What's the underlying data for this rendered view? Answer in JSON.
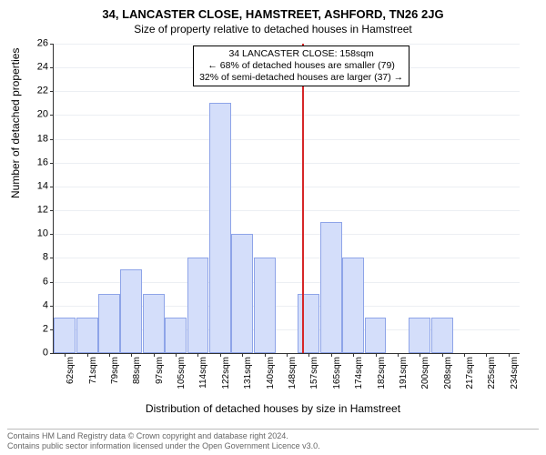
{
  "header": {
    "title": "34, LANCASTER CLOSE, HAMSTREET, ASHFORD, TN26 2JG",
    "subtitle": "Size of property relative to detached houses in Hamstreet"
  },
  "axis": {
    "ylabel": "Number of detached properties",
    "xlabel": "Distribution of detached houses by size in Hamstreet",
    "ylim_max": 26,
    "ytick_step": 2,
    "grid_color": "#eceff3",
    "axis_color": "#333333",
    "label_fontsize": 12,
    "tick_fontsize": 11
  },
  "chart": {
    "type": "histogram",
    "bar_fill": "#d4defa",
    "bar_border": "#8ea4e8",
    "background_color": "#ffffff",
    "categories": [
      "62sqm",
      "71sqm",
      "79sqm",
      "88sqm",
      "97sqm",
      "105sqm",
      "114sqm",
      "122sqm",
      "131sqm",
      "140sqm",
      "148sqm",
      "157sqm",
      "165sqm",
      "174sqm",
      "182sqm",
      "191sqm",
      "200sqm",
      "208sqm",
      "217sqm",
      "225sqm",
      "234sqm"
    ],
    "values": [
      3,
      3,
      5,
      7,
      5,
      3,
      8,
      21,
      10,
      8,
      0,
      5,
      11,
      8,
      3,
      0,
      3,
      3,
      0,
      0,
      0
    ]
  },
  "reference": {
    "color": "#d62728",
    "at_category_index": 11,
    "line1": "34 LANCASTER CLOSE: 158sqm",
    "line2": "← 68% of detached houses are smaller (79)",
    "line3": "32% of semi-detached houses are larger (37) →"
  },
  "footer": {
    "line1": "Contains HM Land Registry data © Crown copyright and database right 2024.",
    "line2": "Contains public sector information licensed under the Open Government Licence v3.0."
  }
}
